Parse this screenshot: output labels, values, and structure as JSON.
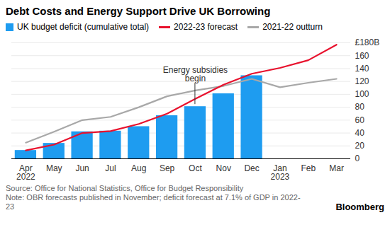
{
  "chart_data": {
    "type": "bar",
    "title": "Debt Costs and Energy Support Drive UK Borrowing",
    "categories": [
      "Apr\n2022",
      "May",
      "Jun",
      "Jul",
      "Aug",
      "Sep",
      "Oct",
      "Nov",
      "Dec",
      "Jan\n2023",
      "Feb",
      "Mar"
    ],
    "series": [
      {
        "name": "UK budget deficit (cumulative total)",
        "type": "bar",
        "color": "#1e9cf0",
        "values": [
          13,
          24,
          42,
          43,
          50,
          67,
          81,
          101,
          129,
          null,
          null,
          null
        ]
      },
      {
        "name": "2022-23 forecast",
        "type": "line",
        "color": "#e8112d",
        "values": [
          13,
          22,
          40,
          43,
          54,
          70,
          93,
          115,
          132,
          141,
          153,
          177
        ]
      },
      {
        "name": "2021-22 outturn",
        "type": "line",
        "color": "#a8a8a8",
        "values": [
          25,
          42,
          60,
          65,
          80,
          97,
          106,
          113,
          124,
          111,
          118,
          124
        ]
      }
    ],
    "ylim": [
      0,
      180
    ],
    "yticks": [
      0,
      20,
      40,
      60,
      80,
      100,
      120,
      140,
      160,
      {
        "value": 180,
        "label": "£180B"
      }
    ],
    "grid": true,
    "legend": "top",
    "annotations": [
      {
        "text": "Energy subsidies\nbegin",
        "x": "Oct"
      }
    ],
    "source": "Source: Office for National Statistics, Office for Budget Responsibility",
    "note": "Note: OBR forecasts published in November; deficit forecast at 7.1% of GDP in 2022-23",
    "credit": "Bloomberg"
  }
}
